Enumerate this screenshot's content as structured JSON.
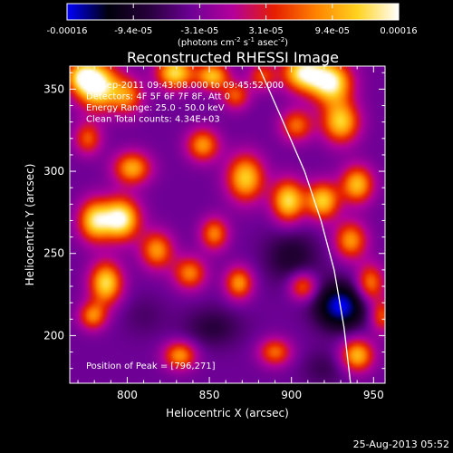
{
  "chart_data": {
    "type": "heatmap",
    "title": "Reconstructed RHESSI Image",
    "xlabel": "Heliocentric X (arcsec)",
    "ylabel": "Heliocentric Y (arcsec)",
    "xlim": [
      765,
      957
    ],
    "ylim": [
      171,
      364
    ],
    "xticks": [
      800,
      850,
      900,
      950
    ],
    "yticks": [
      200,
      250,
      300,
      350
    ],
    "colorbar": {
      "label_parts": [
        "(photons cm",
        "-2",
        " s",
        "-1",
        " asec",
        "-2",
        ")"
      ],
      "min": -0.00016,
      "max": 0.00016,
      "tick_labels": [
        "-0.00016",
        "-9.4e-05",
        "-3.1e-05",
        "3.1e-05",
        "9.4e-05",
        "0.00016"
      ],
      "colormap": [
        "#0000ff",
        "#00000a",
        "#28003c",
        "#6e0096",
        "#b4009b",
        "#e61e00",
        "#ff8200",
        "#ffd21e",
        "#ffffff"
      ]
    },
    "annotations": [
      "23-Sep-2011 09:43:08.000 to 09:45:52.000",
      "Detectors: 4F 5F 6F 7F 8F, Att 0",
      "Energy Range: 25.0 - 50.0 keV",
      "Clean     Total counts: 4.34E+03"
    ],
    "peak_label": "Position of Peak = [796,271]",
    "peak": [
      796,
      271
    ],
    "limb_curve": [
      [
        880,
        364
      ],
      [
        895,
        330
      ],
      [
        908,
        300
      ],
      [
        918,
        270
      ],
      [
        926,
        240
      ],
      [
        932,
        205
      ],
      [
        936,
        171
      ]
    ],
    "background_level": -4e-05,
    "sources": [
      {
        "x": 772,
        "y": 358,
        "v": 9e-05,
        "sx": 7,
        "sy": 7
      },
      {
        "x": 782,
        "y": 352,
        "v": 0.00016,
        "sx": 9,
        "sy": 10
      },
      {
        "x": 800,
        "y": 346,
        "v": 7e-05,
        "sx": 7,
        "sy": 8
      },
      {
        "x": 829,
        "y": 360,
        "v": 0.00013,
        "sx": 8,
        "sy": 7
      },
      {
        "x": 852,
        "y": 358,
        "v": 0.00011,
        "sx": 7,
        "sy": 6
      },
      {
        "x": 866,
        "y": 346,
        "v": 6e-05,
        "sx": 6,
        "sy": 6
      },
      {
        "x": 882,
        "y": 358,
        "v": 5e-05,
        "sx": 6,
        "sy": 6
      },
      {
        "x": 907,
        "y": 360,
        "v": 0.00014,
        "sx": 9,
        "sy": 8
      },
      {
        "x": 924,
        "y": 354,
        "v": 0.00015,
        "sx": 9,
        "sy": 9
      },
      {
        "x": 930,
        "y": 330,
        "v": 0.00012,
        "sx": 8,
        "sy": 9
      },
      {
        "x": 903,
        "y": 328,
        "v": 7e-05,
        "sx": 7,
        "sy": 7
      },
      {
        "x": 776,
        "y": 320,
        "v": 6e-05,
        "sx": 6,
        "sy": 7
      },
      {
        "x": 803,
        "y": 302,
        "v": 0.0001,
        "sx": 8,
        "sy": 7
      },
      {
        "x": 846,
        "y": 316,
        "v": 9e-05,
        "sx": 7,
        "sy": 7
      },
      {
        "x": 872,
        "y": 296,
        "v": 0.00012,
        "sx": 8,
        "sy": 10
      },
      {
        "x": 898,
        "y": 282,
        "v": 0.00013,
        "sx": 7,
        "sy": 9
      },
      {
        "x": 919,
        "y": 282,
        "v": 0.00012,
        "sx": 7,
        "sy": 8
      },
      {
        "x": 940,
        "y": 292,
        "v": 0.00011,
        "sx": 7,
        "sy": 8
      },
      {
        "x": 780,
        "y": 270,
        "v": 0.00012,
        "sx": 7,
        "sy": 9
      },
      {
        "x": 796,
        "y": 271,
        "v": 0.00016,
        "sx": 8,
        "sy": 9
      },
      {
        "x": 818,
        "y": 252,
        "v": 9e-05,
        "sx": 7,
        "sy": 8
      },
      {
        "x": 853,
        "y": 262,
        "v": 8e-05,
        "sx": 6,
        "sy": 7
      },
      {
        "x": 936,
        "y": 258,
        "v": 9e-05,
        "sx": 7,
        "sy": 8
      },
      {
        "x": 787,
        "y": 232,
        "v": 0.00013,
        "sx": 7,
        "sy": 9
      },
      {
        "x": 779,
        "y": 212,
        "v": 8e-05,
        "sx": 6,
        "sy": 6
      },
      {
        "x": 838,
        "y": 238,
        "v": 8e-05,
        "sx": 7,
        "sy": 7
      },
      {
        "x": 868,
        "y": 232,
        "v": 9e-05,
        "sx": 6,
        "sy": 7
      },
      {
        "x": 907,
        "y": 230,
        "v": 7e-05,
        "sx": 6,
        "sy": 6
      },
      {
        "x": 948,
        "y": 232,
        "v": 8e-05,
        "sx": 6,
        "sy": 8
      },
      {
        "x": 832,
        "y": 188,
        "v": 9e-05,
        "sx": 7,
        "sy": 6
      },
      {
        "x": 890,
        "y": 190,
        "v": 7e-05,
        "sx": 7,
        "sy": 6
      },
      {
        "x": 940,
        "y": 188,
        "v": 0.00011,
        "sx": 7,
        "sy": 7
      },
      {
        "x": 955,
        "y": 212,
        "v": 6e-05,
        "sx": 5,
        "sy": 7
      },
      {
        "x": 930,
        "y": 218,
        "v": -0.00016,
        "sx": 11,
        "sy": 10
      },
      {
        "x": 900,
        "y": 248,
        "v": -9e-05,
        "sx": 12,
        "sy": 12
      },
      {
        "x": 852,
        "y": 205,
        "v": -8e-05,
        "sx": 13,
        "sy": 9
      },
      {
        "x": 810,
        "y": 212,
        "v": -6e-05,
        "sx": 10,
        "sy": 9
      },
      {
        "x": 920,
        "y": 180,
        "v": -7e-05,
        "sx": 10,
        "sy": 8
      }
    ]
  },
  "footer": {
    "timestamp": "25-Aug-2013 05:52"
  }
}
